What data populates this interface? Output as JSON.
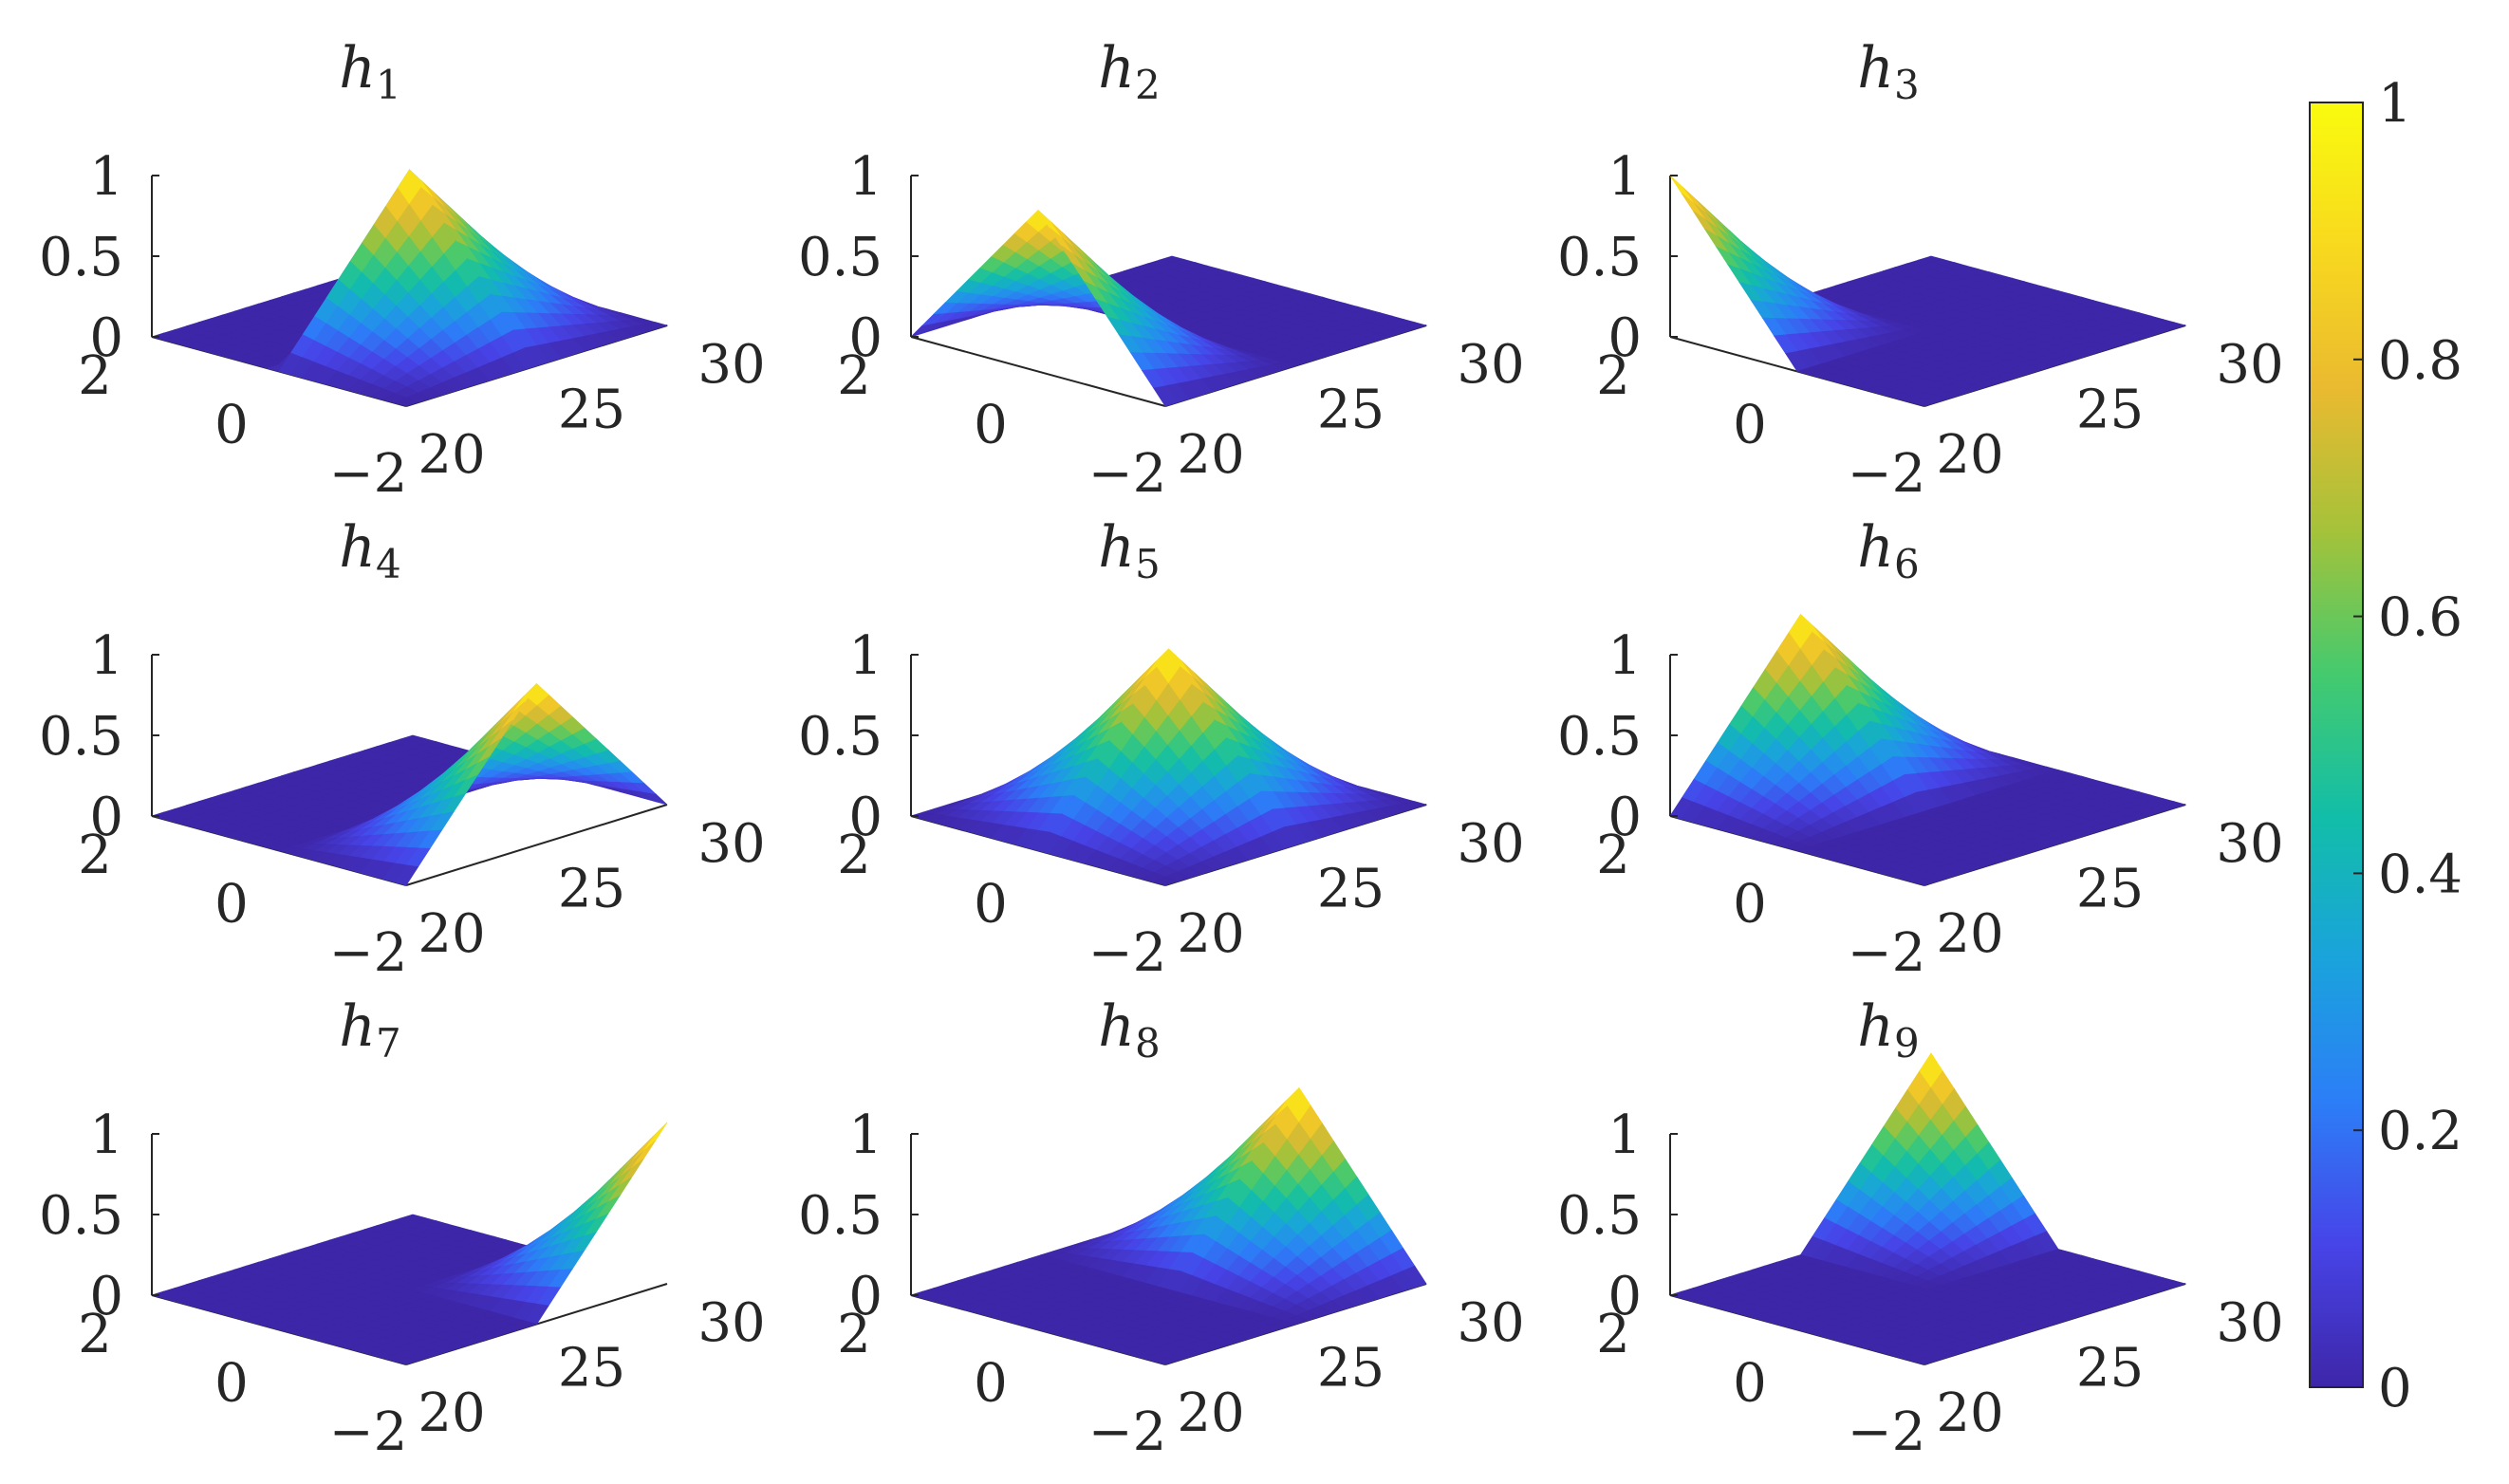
{
  "chart_data": [
    {
      "type": "surface",
      "title": "h",
      "title_sub": "1",
      "peak": {
        "s": 0.5,
        "t": 0.5
      },
      "support": {
        "s": [
          0.5,
          1.0
        ],
        "t": [
          0.0,
          1.0
        ]
      },
      "zlim": [
        0,
        1
      ],
      "z_ticks": [
        "1",
        "0.5",
        "0"
      ],
      "x_ticks": [
        "2",
        "0",
        "−2"
      ],
      "y_ticks": [
        "20",
        "25",
        "30"
      ]
    },
    {
      "type": "surface",
      "title": "h",
      "title_sub": "2",
      "peak": {
        "s": 0.5,
        "t": 0.0
      },
      "support": {
        "s": [
          0.0,
          1.0
        ],
        "t": [
          0.0,
          0.5
        ]
      },
      "zlim": [
        0,
        1
      ],
      "z_ticks": [
        "1",
        "0.5",
        "0"
      ],
      "x_ticks": [
        "2",
        "0",
        "−2"
      ],
      "y_ticks": [
        "20",
        "25",
        "30"
      ]
    },
    {
      "type": "surface",
      "title": "h",
      "title_sub": "3",
      "peak": {
        "s": 0.0,
        "t": 0.0
      },
      "support": {
        "s": [
          0.0,
          0.5
        ],
        "t": [
          0.0,
          0.5
        ]
      },
      "zlim": [
        0,
        1
      ],
      "z_ticks": [
        "1",
        "0.5",
        "0"
      ],
      "x_ticks": [
        "2",
        "0",
        "−2"
      ],
      "y_ticks": [
        "20",
        "25",
        "30"
      ]
    },
    {
      "type": "surface",
      "title": "h",
      "title_sub": "4",
      "peak": {
        "s": 1.0,
        "t": 0.5
      },
      "support": {
        "s": [
          0.5,
          1.0
        ],
        "t": [
          0.0,
          1.0
        ]
      },
      "zlim": [
        0,
        1
      ],
      "z_ticks": [
        "1",
        "0.5",
        "0"
      ],
      "x_ticks": [
        "2",
        "0",
        "−2"
      ],
      "y_ticks": [
        "20",
        "25",
        "30"
      ]
    },
    {
      "type": "surface",
      "title": "h",
      "title_sub": "5",
      "peak": {
        "s": 0.5,
        "t": 0.5
      },
      "support": {
        "s": [
          0.0,
          1.0
        ],
        "t": [
          0.0,
          1.0
        ]
      },
      "zlim": [
        0,
        1
      ],
      "z_ticks": [
        "1",
        "0.5",
        "0"
      ],
      "x_ticks": [
        "2",
        "0",
        "−2"
      ],
      "y_ticks": [
        "20",
        "25",
        "30"
      ]
    },
    {
      "type": "surface",
      "title": "h",
      "title_sub": "6",
      "peak": {
        "s": 0.0,
        "t": 0.5
      },
      "support": {
        "s": [
          0.0,
          0.5
        ],
        "t": [
          0.0,
          1.0
        ]
      },
      "zlim": [
        0,
        1
      ],
      "z_ticks": [
        "1",
        "0.5",
        "0"
      ],
      "x_ticks": [
        "2",
        "0",
        "−2"
      ],
      "y_ticks": [
        "20",
        "25",
        "30"
      ]
    },
    {
      "type": "surface",
      "title": "h",
      "title_sub": "7",
      "peak": {
        "s": 1.0,
        "t": 1.0
      },
      "support": {
        "s": [
          0.5,
          1.0
        ],
        "t": [
          0.5,
          1.0
        ]
      },
      "zlim": [
        0,
        1
      ],
      "z_ticks": [
        "1",
        "0.5",
        "0"
      ],
      "x_ticks": [
        "2",
        "0",
        "−2"
      ],
      "y_ticks": [
        "20",
        "25",
        "30"
      ]
    },
    {
      "type": "surface",
      "title": "h",
      "title_sub": "8",
      "peak": {
        "s": 0.5,
        "t": 1.0
      },
      "support": {
        "s": [
          0.0,
          1.0
        ],
        "t": [
          0.5,
          1.0
        ]
      },
      "zlim": [
        0,
        1
      ],
      "z_ticks": [
        "1",
        "0.5",
        "0"
      ],
      "x_ticks": [
        "2",
        "0",
        "−2"
      ],
      "y_ticks": [
        "20",
        "25",
        "30"
      ]
    },
    {
      "type": "surface",
      "title": "h",
      "title_sub": "9",
      "peak": {
        "s": 0.0,
        "t": 1.0
      },
      "support": {
        "s": [
          0.0,
          0.5
        ],
        "t": [
          0.5,
          1.0
        ]
      },
      "zlim": [
        0,
        1
      ],
      "z_ticks": [
        "1",
        "0.5",
        "0"
      ],
      "x_ticks": [
        "2",
        "0",
        "−2"
      ],
      "y_ticks": [
        "20",
        "25",
        "30"
      ]
    }
  ],
  "colorbar": {
    "colormap": "parula",
    "range": [
      0,
      1
    ],
    "ticks": [
      {
        "value": 1,
        "label": "1"
      },
      {
        "value": 0.8,
        "label": "0.8"
      },
      {
        "value": 0.6,
        "label": "0.6"
      },
      {
        "value": 0.4,
        "label": "0.4"
      },
      {
        "value": 0.2,
        "label": "0.2"
      },
      {
        "value": 0,
        "label": "0"
      }
    ],
    "stops": [
      "#3e26a8",
      "#4744e8",
      "#2c7ef7",
      "#1aa3dc",
      "#12bea8",
      "#45ca6e",
      "#a5c23a",
      "#eaba30",
      "#f8d91e",
      "#f9fb0e"
    ]
  }
}
